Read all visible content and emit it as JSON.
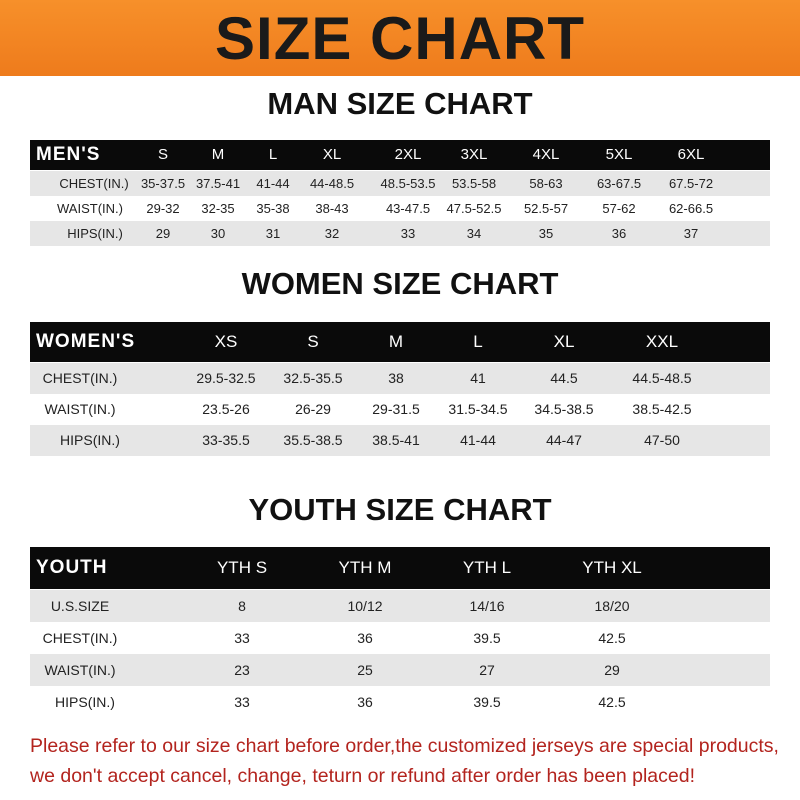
{
  "title": "SIZE CHART",
  "colors": {
    "banner": "#f28523",
    "header_row": "#0a0a0a",
    "note_text": "#b3241e"
  },
  "tables": [
    {
      "title": "MAN SIZE CHART",
      "header_label": "MEN'S",
      "sizes": [
        "S",
        "M",
        "L",
        "XL",
        "2XL",
        "3XL",
        "4XL",
        "5XL",
        "6XL"
      ],
      "rows": [
        {
          "label": "CHEST(IN.)",
          "values": [
            "35-37.5",
            "37.5-41",
            "41-44",
            "44-48.5",
            "48.5-53.5",
            "53.5-58",
            "58-63",
            "63-67.5",
            "67.5-72"
          ]
        },
        {
          "label": "WAIST(IN.)",
          "values": [
            "29-32",
            "32-35",
            "35-38",
            "38-43",
            "43-47.5",
            "47.5-52.5",
            "52.5-57",
            "57-62",
            "62-66.5"
          ]
        },
        {
          "label": "HIPS(IN.)",
          "values": [
            "29",
            "30",
            "31",
            "32",
            "33",
            "34",
            "35",
            "36",
            "37"
          ]
        }
      ]
    },
    {
      "title": "WOMEN SIZE CHART",
      "header_label": "WOMEN'S",
      "sizes": [
        "XS",
        "S",
        "M",
        "L",
        "XL",
        "XXL"
      ],
      "rows": [
        {
          "label": "CHEST(IN.)",
          "values": [
            "29.5-32.5",
            "32.5-35.5",
            "38",
            "41",
            "44.5",
            "44.5-48.5"
          ]
        },
        {
          "label": "WAIST(IN.)",
          "values": [
            "23.5-26",
            "26-29",
            "29-31.5",
            "31.5-34.5",
            "34.5-38.5",
            "38.5-42.5"
          ]
        },
        {
          "label": "HIPS(IN.)",
          "values": [
            "33-35.5",
            "35.5-38.5",
            "38.5-41",
            "41-44",
            "44-47",
            "47-50"
          ]
        }
      ]
    },
    {
      "title": "YOUTH SIZE CHART",
      "header_label": "YOUTH",
      "sizes": [
        "YTH S",
        "YTH M",
        "YTH L",
        "YTH XL"
      ],
      "rows": [
        {
          "label": "U.S.SIZE",
          "values": [
            "8",
            "10/12",
            "14/16",
            "18/20"
          ]
        },
        {
          "label": "CHEST(IN.)",
          "values": [
            "33",
            "36",
            "39.5",
            "42.5"
          ]
        },
        {
          "label": "WAIST(IN.)",
          "values": [
            "23",
            "25",
            "27",
            "29"
          ]
        },
        {
          "label": "HIPS(IN.)",
          "values": [
            "33",
            "36",
            "39.5",
            "42.5"
          ]
        }
      ]
    }
  ],
  "note": {
    "line1": "Please refer to our size chart before order,the customized jerseys are special products,",
    "line2": "we don't accept cancel, change, teturn or refund after order has been placed!"
  }
}
